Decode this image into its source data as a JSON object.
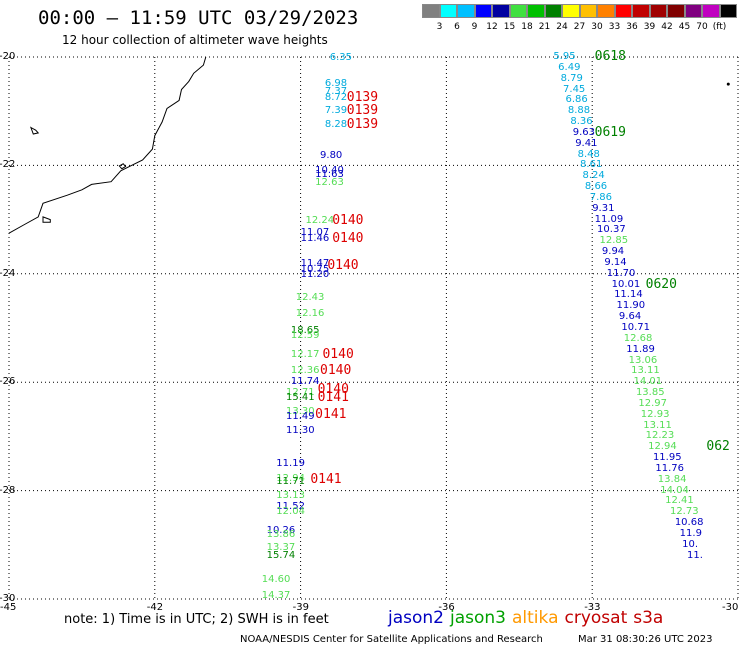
{
  "header": {
    "title": "00:00 — 11:59 UTC 03/29/2023",
    "subtitle": "12 hour collection of altimeter wave heights"
  },
  "colorbar": {
    "colors": [
      "#808080",
      "#00ffff",
      "#00c0ff",
      "#0000ff",
      "#0000a0",
      "#40e040",
      "#00c000",
      "#008000",
      "#ffff00",
      "#ffc000",
      "#ff8000",
      "#ff0000",
      "#c00000",
      "#a00000",
      "#800000",
      "#800080",
      "#c000c0",
      "#000000"
    ],
    "labels": [
      "3",
      "6",
      "9",
      "12",
      "15",
      "18",
      "21",
      "24",
      "27",
      "30",
      "33",
      "36",
      "39",
      "42",
      "45",
      "70",
      "(ft)"
    ]
  },
  "map": {
    "lon_min": -45,
    "lon_max": -30,
    "lat_min": -30,
    "lat_max": -20,
    "lon_ticks": [
      "-45",
      "-42",
      "-39",
      "-36",
      "-33",
      "-30"
    ],
    "lat_ticks": [
      "-20",
      "-22",
      "-24",
      "-26",
      "-28",
      "-30"
    ],
    "lat_tick_values": [
      -20,
      -22,
      -24,
      -26,
      -28,
      -30
    ],
    "lon_tick_values": [
      -45,
      -42,
      -39,
      -36,
      -33,
      -30
    ],
    "grid": true
  },
  "satellite_colors": {
    "jason2": "#0000c0",
    "jason3": "#00a000",
    "altika": "#ff9900",
    "cryosat": "#c00000",
    "s3a": "#c00000"
  },
  "point_colors": {
    "cyan": "#00aadd",
    "blue": "#0000c0",
    "lightgreen": "#55dd55",
    "darkgreen": "#008000",
    "red": "#dd0000"
  },
  "wave_heights": [
    {
      "lon": -38.4,
      "lat": -20.02,
      "value": "6.35",
      "color": "cyan"
    },
    {
      "lon": -38.5,
      "lat": -20.5,
      "value": "6.98",
      "color": "cyan"
    },
    {
      "lon": -38.5,
      "lat": -20.65,
      "value": "7.37",
      "color": "cyan"
    },
    {
      "lon": -38.5,
      "lat": -20.75,
      "value": "8.72",
      "color": "cyan"
    },
    {
      "lon": -38.5,
      "lat": -21.0,
      "value": "7.39",
      "color": "cyan"
    },
    {
      "lon": -38.5,
      "lat": -21.25,
      "value": "8.28",
      "color": "cyan"
    },
    {
      "lon": -38.6,
      "lat": -21.83,
      "value": "9.80",
      "color": "blue"
    },
    {
      "lon": -38.7,
      "lat": -22.1,
      "value": "10.40",
      "color": "blue"
    },
    {
      "lon": -38.7,
      "lat": -22.18,
      "value": "11.63",
      "color": "blue"
    },
    {
      "lon": -38.7,
      "lat": -22.33,
      "value": "12.63",
      "color": "lightgreen"
    },
    {
      "lon": -38.9,
      "lat": -23.03,
      "value": "12.24",
      "color": "lightgreen"
    },
    {
      "lon": -39.0,
      "lat": -23.25,
      "value": "11.07",
      "color": "blue"
    },
    {
      "lon": -39.0,
      "lat": -23.35,
      "value": "11.46",
      "color": "blue"
    },
    {
      "lon": -39.0,
      "lat": -23.82,
      "value": "11.47",
      "color": "blue"
    },
    {
      "lon": -39.0,
      "lat": -23.93,
      "value": "10.75",
      "color": "blue"
    },
    {
      "lon": -39.0,
      "lat": -24.03,
      "value": "11.20",
      "color": "blue"
    },
    {
      "lon": -39.1,
      "lat": -24.45,
      "value": "12.43",
      "color": "lightgreen"
    },
    {
      "lon": -39.1,
      "lat": -24.75,
      "value": "12.16",
      "color": "lightgreen"
    },
    {
      "lon": -39.2,
      "lat": -25.05,
      "value": "18.65",
      "color": "darkgreen"
    },
    {
      "lon": -39.2,
      "lat": -25.15,
      "value": "12.59",
      "color": "lightgreen"
    },
    {
      "lon": -39.2,
      "lat": -25.5,
      "value": "12.17",
      "color": "lightgreen"
    },
    {
      "lon": -39.2,
      "lat": -25.8,
      "value": "12.36",
      "color": "lightgreen"
    },
    {
      "lon": -39.2,
      "lat": -26.0,
      "value": "11.74",
      "color": "blue"
    },
    {
      "lon": -39.3,
      "lat": -26.2,
      "value": "12.71",
      "color": "lightgreen"
    },
    {
      "lon": -39.3,
      "lat": -26.3,
      "value": "15.41",
      "color": "darkgreen"
    },
    {
      "lon": -39.3,
      "lat": -26.55,
      "value": "13.30",
      "color": "lightgreen"
    },
    {
      "lon": -39.3,
      "lat": -26.65,
      "value": "11.49",
      "color": "blue"
    },
    {
      "lon": -39.3,
      "lat": -26.9,
      "value": "11.30",
      "color": "blue"
    },
    {
      "lon": -39.5,
      "lat": -27.5,
      "value": "11.19",
      "color": "blue"
    },
    {
      "lon": -39.5,
      "lat": -27.78,
      "value": "12.94",
      "color": "lightgreen"
    },
    {
      "lon": -39.5,
      "lat": -27.85,
      "value": "11.71",
      "color": "darkgreen"
    },
    {
      "lon": -39.5,
      "lat": -28.1,
      "value": "13.13",
      "color": "lightgreen"
    },
    {
      "lon": -39.5,
      "lat": -28.3,
      "value": "11.52",
      "color": "blue"
    },
    {
      "lon": -39.5,
      "lat": -28.4,
      "value": "12.04",
      "color": "lightgreen"
    },
    {
      "lon": -39.7,
      "lat": -28.75,
      "value": "10.26",
      "color": "blue"
    },
    {
      "lon": -39.7,
      "lat": -28.82,
      "value": "13.86",
      "color": "lightgreen"
    },
    {
      "lon": -39.7,
      "lat": -29.05,
      "value": "13.37",
      "color": "lightgreen"
    },
    {
      "lon": -39.7,
      "lat": -29.2,
      "value": "15.74",
      "color": "darkgreen"
    },
    {
      "lon": -39.8,
      "lat": -29.65,
      "value": "14.60",
      "color": "lightgreen"
    },
    {
      "lon": -39.8,
      "lat": -29.95,
      "value": "14.37",
      "color": "lightgreen"
    },
    {
      "lon": -33.8,
      "lat": -20.0,
      "value": "5.95",
      "color": "cyan"
    },
    {
      "lon": -33.7,
      "lat": -20.2,
      "value": "6.49",
      "color": "cyan"
    },
    {
      "lon": -33.65,
      "lat": -20.4,
      "value": "8.79",
      "color": "cyan"
    },
    {
      "lon": -33.6,
      "lat": -20.6,
      "value": "7.45",
      "color": "cyan"
    },
    {
      "lon": -33.55,
      "lat": -20.8,
      "value": "6.86",
      "color": "cyan"
    },
    {
      "lon": -33.5,
      "lat": -21.0,
      "value": "8.88",
      "color": "cyan"
    },
    {
      "lon": -33.45,
      "lat": -21.2,
      "value": "8.36",
      "color": "cyan"
    },
    {
      "lon": -33.4,
      "lat": -21.4,
      "value": "9.63",
      "color": "blue"
    },
    {
      "lon": -33.35,
      "lat": -21.6,
      "value": "9.41",
      "color": "blue"
    },
    {
      "lon": -33.3,
      "lat": -21.8,
      "value": "8.48",
      "color": "cyan"
    },
    {
      "lon": -33.25,
      "lat": -22.0,
      "value": "8.61",
      "color": "cyan"
    },
    {
      "lon": -33.2,
      "lat": -22.2,
      "value": "8.24",
      "color": "cyan"
    },
    {
      "lon": -33.15,
      "lat": -22.4,
      "value": "8.66",
      "color": "cyan"
    },
    {
      "lon": -33.05,
      "lat": -22.6,
      "value": "7.86",
      "color": "cyan"
    },
    {
      "lon": -33.0,
      "lat": -22.8,
      "value": "9.31",
      "color": "blue"
    },
    {
      "lon": -32.95,
      "lat": -23.0,
      "value": "11.09",
      "color": "blue"
    },
    {
      "lon": -32.9,
      "lat": -23.2,
      "value": "10.37",
      "color": "blue"
    },
    {
      "lon": -32.85,
      "lat": -23.4,
      "value": "12.85",
      "color": "lightgreen"
    },
    {
      "lon": -32.8,
      "lat": -23.6,
      "value": "9.94",
      "color": "blue"
    },
    {
      "lon": -32.75,
      "lat": -23.8,
      "value": "9.14",
      "color": "blue"
    },
    {
      "lon": -32.7,
      "lat": -24.0,
      "value": "11.70",
      "color": "blue"
    },
    {
      "lon": -32.6,
      "lat": -24.2,
      "value": "10.01",
      "color": "blue"
    },
    {
      "lon": -32.55,
      "lat": -24.4,
      "value": "11.14",
      "color": "blue"
    },
    {
      "lon": -32.5,
      "lat": -24.6,
      "value": "11.90",
      "color": "blue"
    },
    {
      "lon": -32.45,
      "lat": -24.8,
      "value": "9.64",
      "color": "blue"
    },
    {
      "lon": -32.4,
      "lat": -25.0,
      "value": "10.71",
      "color": "blue"
    },
    {
      "lon": -32.35,
      "lat": -25.2,
      "value": "12.68",
      "color": "lightgreen"
    },
    {
      "lon": -32.3,
      "lat": -25.4,
      "value": "11.89",
      "color": "blue"
    },
    {
      "lon": -32.25,
      "lat": -25.6,
      "value": "13.06",
      "color": "lightgreen"
    },
    {
      "lon": -32.2,
      "lat": -25.8,
      "value": "13.11",
      "color": "lightgreen"
    },
    {
      "lon": -32.15,
      "lat": -26.0,
      "value": "14.01",
      "color": "lightgreen"
    },
    {
      "lon": -32.1,
      "lat": -26.2,
      "value": "13.85",
      "color": "lightgreen"
    },
    {
      "lon": -32.05,
      "lat": -26.4,
      "value": "12.97",
      "color": "lightgreen"
    },
    {
      "lon": -32.0,
      "lat": -26.6,
      "value": "12.93",
      "color": "lightgreen"
    },
    {
      "lon": -31.95,
      "lat": -26.8,
      "value": "13.11",
      "color": "lightgreen"
    },
    {
      "lon": -31.9,
      "lat": -27.0,
      "value": "12.23",
      "color": "lightgreen"
    },
    {
      "lon": -31.85,
      "lat": -27.2,
      "value": "12.94",
      "color": "lightgreen"
    },
    {
      "lon": -31.75,
      "lat": -27.4,
      "value": "11.95",
      "color": "blue"
    },
    {
      "lon": -31.7,
      "lat": -27.6,
      "value": "11.76",
      "color": "blue"
    },
    {
      "lon": -31.65,
      "lat": -27.8,
      "value": "13.84",
      "color": "lightgreen"
    },
    {
      "lon": -31.6,
      "lat": -28.0,
      "value": "14.04",
      "color": "lightgreen"
    },
    {
      "lon": -31.5,
      "lat": -28.2,
      "value": "12.41",
      "color": "lightgreen"
    },
    {
      "lon": -31.4,
      "lat": -28.4,
      "value": "12.73",
      "color": "lightgreen"
    },
    {
      "lon": -31.3,
      "lat": -28.6,
      "value": "10.68",
      "color": "blue"
    },
    {
      "lon": -31.2,
      "lat": -28.8,
      "value": "11.9",
      "color": "blue"
    },
    {
      "lon": -31.15,
      "lat": -29.0,
      "value": "10.",
      "color": "blue"
    },
    {
      "lon": -31.05,
      "lat": -29.2,
      "value": "11.",
      "color": "blue"
    }
  ],
  "time_labels": [
    {
      "lon": -38.05,
      "lat": -20.75,
      "text": "0139",
      "color": "red"
    },
    {
      "lon": -38.05,
      "lat": -21.0,
      "text": "0139",
      "color": "red"
    },
    {
      "lon": -38.05,
      "lat": -21.25,
      "text": "0139",
      "color": "red"
    },
    {
      "lon": -38.35,
      "lat": -23.03,
      "text": "0140",
      "color": "red"
    },
    {
      "lon": -38.35,
      "lat": -23.35,
      "text": "0140",
      "color": "red"
    },
    {
      "lon": -38.45,
      "lat": -23.85,
      "text": "0140",
      "color": "red"
    },
    {
      "lon": -38.55,
      "lat": -25.5,
      "text": "0140",
      "color": "red"
    },
    {
      "lon": -38.6,
      "lat": -25.8,
      "text": "0140",
      "color": "red"
    },
    {
      "lon": -38.65,
      "lat": -26.15,
      "text": "0140",
      "color": "red"
    },
    {
      "lon": -38.65,
      "lat": -26.3,
      "text": "0141",
      "color": "red"
    },
    {
      "lon": -38.7,
      "lat": -26.6,
      "text": "0141",
      "color": "red"
    },
    {
      "lon": -38.8,
      "lat": -27.8,
      "text": "0141",
      "color": "red"
    },
    {
      "lon": -32.95,
      "lat": -20.0,
      "text": "0618",
      "color": "darkgreen"
    },
    {
      "lon": -32.95,
      "lat": -21.4,
      "text": "0619",
      "color": "darkgreen"
    },
    {
      "lon": -31.9,
      "lat": -24.2,
      "text": "0620",
      "color": "darkgreen"
    },
    {
      "lon": -30.65,
      "lat": -27.2,
      "text": "062",
      "color": "darkgreen"
    }
  ],
  "coastline": [
    [
      -40.95,
      -20.0
    ],
    [
      -41.0,
      -20.15
    ],
    [
      -41.2,
      -20.3
    ],
    [
      -41.3,
      -20.45
    ],
    [
      -41.45,
      -20.6
    ],
    [
      -41.5,
      -20.8
    ],
    [
      -41.75,
      -20.95
    ],
    [
      -41.85,
      -21.2
    ],
    [
      -42.0,
      -21.45
    ],
    [
      -42.05,
      -21.7
    ],
    [
      -42.25,
      -21.9
    ],
    [
      -42.7,
      -22.1
    ],
    [
      -42.9,
      -22.3
    ],
    [
      -43.3,
      -22.35
    ],
    [
      -43.5,
      -22.45
    ],
    [
      -43.8,
      -22.55
    ],
    [
      -44.3,
      -22.7
    ],
    [
      -44.4,
      -22.95
    ],
    [
      -44.7,
      -23.1
    ],
    [
      -45.0,
      -23.25
    ]
  ],
  "islands": [
    [
      [
        -42.73,
        -22.01
      ],
      [
        -42.65,
        -21.97
      ],
      [
        -42.6,
        -22.02
      ],
      [
        -42.68,
        -22.06
      ]
    ],
    [
      [
        -44.55,
        -21.3
      ],
      [
        -44.45,
        -21.35
      ],
      [
        -44.4,
        -21.4
      ],
      [
        -44.5,
        -21.42
      ]
    ],
    [
      [
        -44.3,
        -22.95
      ],
      [
        -44.15,
        -23.0
      ],
      [
        -44.15,
        -23.05
      ],
      [
        -44.3,
        -23.05
      ]
    ]
  ],
  "dot": {
    "lon": -30.2,
    "lat": -20.5
  },
  "legend": {
    "note": "note: 1) Time is in UTC; 2) SWH is in feet",
    "satellites": [
      {
        "key": "jason2",
        "label": "jason2"
      },
      {
        "key": "jason3",
        "label": "jason3"
      },
      {
        "key": "altika",
        "label": "altika"
      },
      {
        "key": "cryosat",
        "label": "cryosat"
      },
      {
        "key": "s3a",
        "label": "s3a"
      }
    ]
  },
  "footer": {
    "left": "NOAA/NESDIS Center for Satellite Applications and Research",
    "right": "Mar 31 08:30:26 UTC 2023"
  }
}
